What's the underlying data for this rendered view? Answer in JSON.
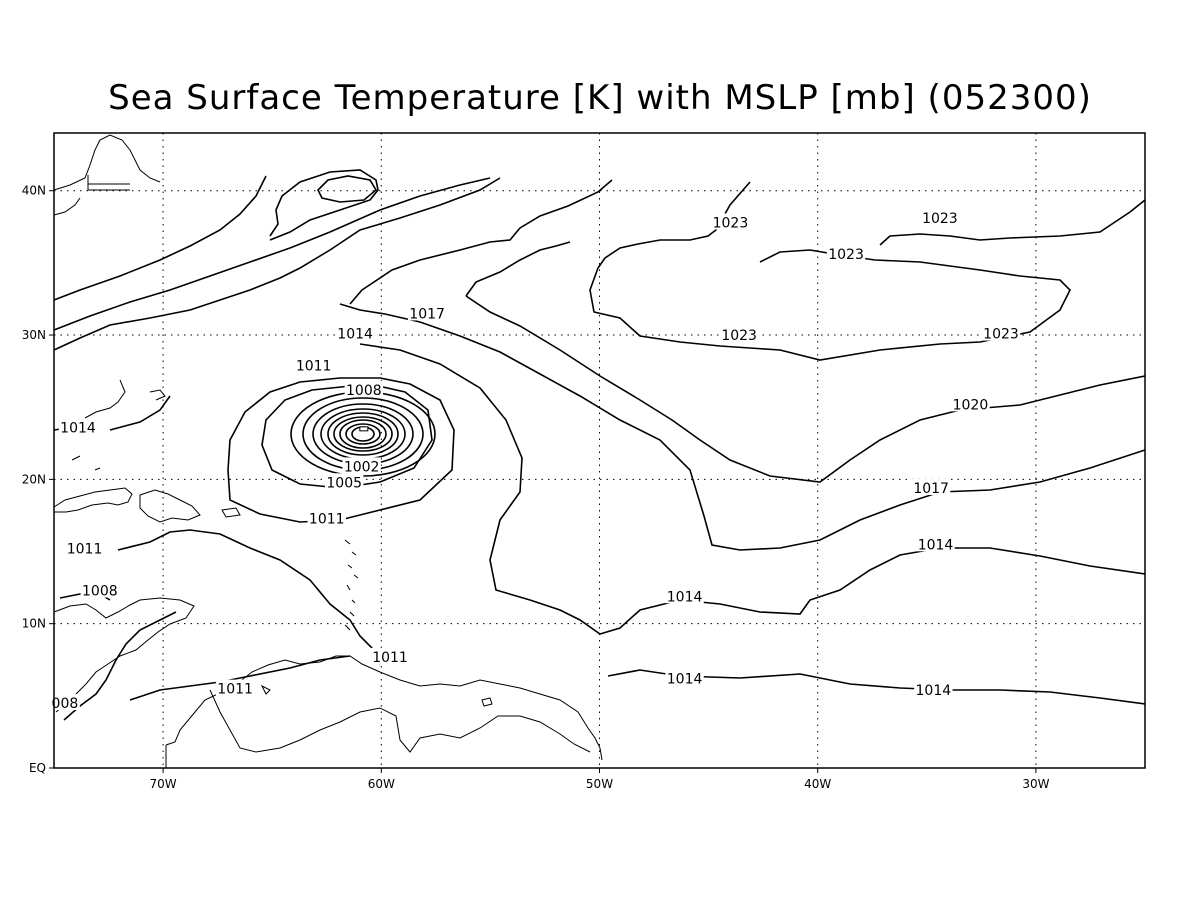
{
  "title": "Sea Surface Temperature [K] with MSLP [mb] (052300)",
  "map": {
    "projection": "lat-lon",
    "lon_range": [
      -75,
      -25
    ],
    "lat_range": [
      0,
      44
    ],
    "gridlines": "dotted",
    "colors": {
      "frame": "#000000",
      "contour": "#000000",
      "coast": "#000000",
      "background": "#ffffff"
    }
  },
  "axes": {
    "lon_ticks": [
      {
        "lon": -70,
        "label": "70W"
      },
      {
        "lon": -60,
        "label": "60W"
      },
      {
        "lon": -50,
        "label": "50W"
      },
      {
        "lon": -40,
        "label": "40W"
      },
      {
        "lon": -30,
        "label": "30W"
      }
    ],
    "lat_ticks": [
      {
        "lat": 0,
        "label": "EQ"
      },
      {
        "lat": 10,
        "label": "10N"
      },
      {
        "lat": 20,
        "label": "20N"
      },
      {
        "lat": 30,
        "label": "30N"
      },
      {
        "lat": 40,
        "label": "40N"
      }
    ]
  },
  "storm_center": {
    "lon": -60.8,
    "lat": 23.5
  },
  "contour_labels": [
    {
      "text": "1023",
      "lon": -44.0,
      "lat": 37.8
    },
    {
      "text": "1023",
      "lon": -34.4,
      "lat": 38.1
    },
    {
      "text": "1023",
      "lon": -38.7,
      "lat": 35.6
    },
    {
      "text": "1023",
      "lon": -43.6,
      "lat": 30.0
    },
    {
      "text": "1023",
      "lon": -31.6,
      "lat": 30.1
    },
    {
      "text": "1017",
      "lon": -57.9,
      "lat": 31.5
    },
    {
      "text": "1014",
      "lon": -61.2,
      "lat": 30.1
    },
    {
      "text": "1011",
      "lon": -63.1,
      "lat": 27.9
    },
    {
      "text": "1008",
      "lon": -60.8,
      "lat": 26.2
    },
    {
      "text": "1005",
      "lon": -61.7,
      "lat": 19.8
    },
    {
      "text": "1002",
      "lon": -60.9,
      "lat": 20.9
    },
    {
      "text": "1014",
      "lon": -73.9,
      "lat": 23.6
    },
    {
      "text": "1011",
      "lon": -62.5,
      "lat": 17.3
    },
    {
      "text": "1011",
      "lon": -73.6,
      "lat": 15.2
    },
    {
      "text": "1020",
      "lon": -33.0,
      "lat": 25.2
    },
    {
      "text": "1017",
      "lon": -34.8,
      "lat": 19.4
    },
    {
      "text": "1014",
      "lon": -34.6,
      "lat": 15.5
    },
    {
      "text": "1014",
      "lon": -46.1,
      "lat": 11.9
    },
    {
      "text": "1014",
      "lon": -46.1,
      "lat": 6.2
    },
    {
      "text": "1014",
      "lon": -34.7,
      "lat": 5.4
    },
    {
      "text": "1008",
      "lon": -72.9,
      "lat": 12.3
    },
    {
      "text": "1011",
      "lon": -59.6,
      "lat": 7.7
    },
    {
      "text": "1011",
      "lon": -66.7,
      "lat": 5.5
    },
    {
      "text": "008",
      "lon": -74.5,
      "lat": 4.5
    }
  ]
}
